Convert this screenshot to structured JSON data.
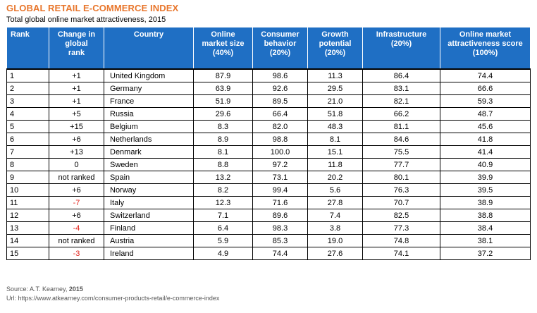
{
  "chart_data": {
    "type": "table",
    "title": "GLOBAL RETAIL E-COMMERCE INDEX",
    "subtitle": "Total global online market attractiveness, 2015",
    "columns": [
      {
        "key": "rank",
        "label_lines": [
          "Rank"
        ]
      },
      {
        "key": "change",
        "label_lines": [
          "Change in",
          "global",
          "rank"
        ]
      },
      {
        "key": "country",
        "label_lines": [
          "Country"
        ]
      },
      {
        "key": "market_size",
        "label_lines": [
          "Online",
          "market size",
          "(40%)"
        ]
      },
      {
        "key": "consumer_behavior",
        "label_lines": [
          "Consumer",
          "behavior",
          "(20%)"
        ]
      },
      {
        "key": "growth_potential",
        "label_lines": [
          "Growth",
          "potential",
          "(20%)"
        ]
      },
      {
        "key": "infrastructure",
        "label_lines": [
          "Infrastructure",
          "(20%)"
        ]
      },
      {
        "key": "score",
        "label_lines": [
          "Online market",
          "attractiveness score",
          "(100%)"
        ]
      }
    ],
    "rows": [
      {
        "rank": "1",
        "change": "+1",
        "country": "United Kingdom",
        "market_size": "87.9",
        "consumer_behavior": "98.6",
        "growth_potential": "11.3",
        "infrastructure": "86.4",
        "score": "74.4"
      },
      {
        "rank": "2",
        "change": "+1",
        "country": "Germany",
        "market_size": "63.9",
        "consumer_behavior": "92.6",
        "growth_potential": "29.5",
        "infrastructure": "83.1",
        "score": "66.6"
      },
      {
        "rank": "3",
        "change": "+1",
        "country": "France",
        "market_size": "51.9",
        "consumer_behavior": "89.5",
        "growth_potential": "21.0",
        "infrastructure": "82.1",
        "score": "59.3"
      },
      {
        "rank": "4",
        "change": "+5",
        "country": "Russia",
        "market_size": "29.6",
        "consumer_behavior": "66.4",
        "growth_potential": "51.8",
        "infrastructure": "66.2",
        "score": "48.7"
      },
      {
        "rank": "5",
        "change": "+15",
        "country": "Belgium",
        "market_size": "8.3",
        "consumer_behavior": "82.0",
        "growth_potential": "48.3",
        "infrastructure": "81.1",
        "score": "45.6"
      },
      {
        "rank": "6",
        "change": "+6",
        "country": "Netherlands",
        "market_size": "8.9",
        "consumer_behavior": "98.8",
        "growth_potential": "8.1",
        "infrastructure": "84.6",
        "score": "41.8"
      },
      {
        "rank": "7",
        "change": "+13",
        "country": "Denmark",
        "market_size": "8.1",
        "consumer_behavior": "100.0",
        "growth_potential": "15.1",
        "infrastructure": "75.5",
        "score": "41.4"
      },
      {
        "rank": "8",
        "change": "0",
        "country": "Sweden",
        "market_size": "8.8",
        "consumer_behavior": "97.2",
        "growth_potential": "11.8",
        "infrastructure": "77.7",
        "score": "40.9"
      },
      {
        "rank": "9",
        "change": "not ranked",
        "country": "Spain",
        "market_size": "13.2",
        "consumer_behavior": "73.1",
        "growth_potential": "20.2",
        "infrastructure": "80.1",
        "score": "39.9"
      },
      {
        "rank": "10",
        "change": "+6",
        "country": "Norway",
        "market_size": "8.2",
        "consumer_behavior": "99.4",
        "growth_potential": "5.6",
        "infrastructure": "76.3",
        "score": "39.5"
      },
      {
        "rank": "11",
        "change": "-7",
        "country": "Italy",
        "market_size": "12.3",
        "consumer_behavior": "71.6",
        "growth_potential": "27.8",
        "infrastructure": "70.7",
        "score": "38.9"
      },
      {
        "rank": "12",
        "change": "+6",
        "country": "Switzerland",
        "market_size": "7.1",
        "consumer_behavior": "89.6",
        "growth_potential": "7.4",
        "infrastructure": "82.5",
        "score": "38.8"
      },
      {
        "rank": "13",
        "change": "-4",
        "country": "Finland",
        "market_size": "6.4",
        "consumer_behavior": "98.3",
        "growth_potential": "3.8",
        "infrastructure": "77.3",
        "score": "38.4"
      },
      {
        "rank": "14",
        "change": "not ranked",
        "country": "Austria",
        "market_size": "5.9",
        "consumer_behavior": "85.3",
        "growth_potential": "19.0",
        "infrastructure": "74.8",
        "score": "38.1"
      },
      {
        "rank": "15",
        "change": "-3",
        "country": "Ireland",
        "market_size": "4.9",
        "consumer_behavior": "74.4",
        "growth_potential": "27.6",
        "infrastructure": "74.1",
        "score": "37.2"
      }
    ]
  },
  "colors": {
    "title": "#e8762c",
    "header_bg": "#1f6fc4",
    "header_text": "#ffffff",
    "negative_change": "#e3231b"
  },
  "footer": {
    "source_prefix": "Source: A.T. Kearney, ",
    "source_year": "2015",
    "url": "Url: https://www.atkearney.com/consumer-products-retail/e-commerce-index"
  }
}
